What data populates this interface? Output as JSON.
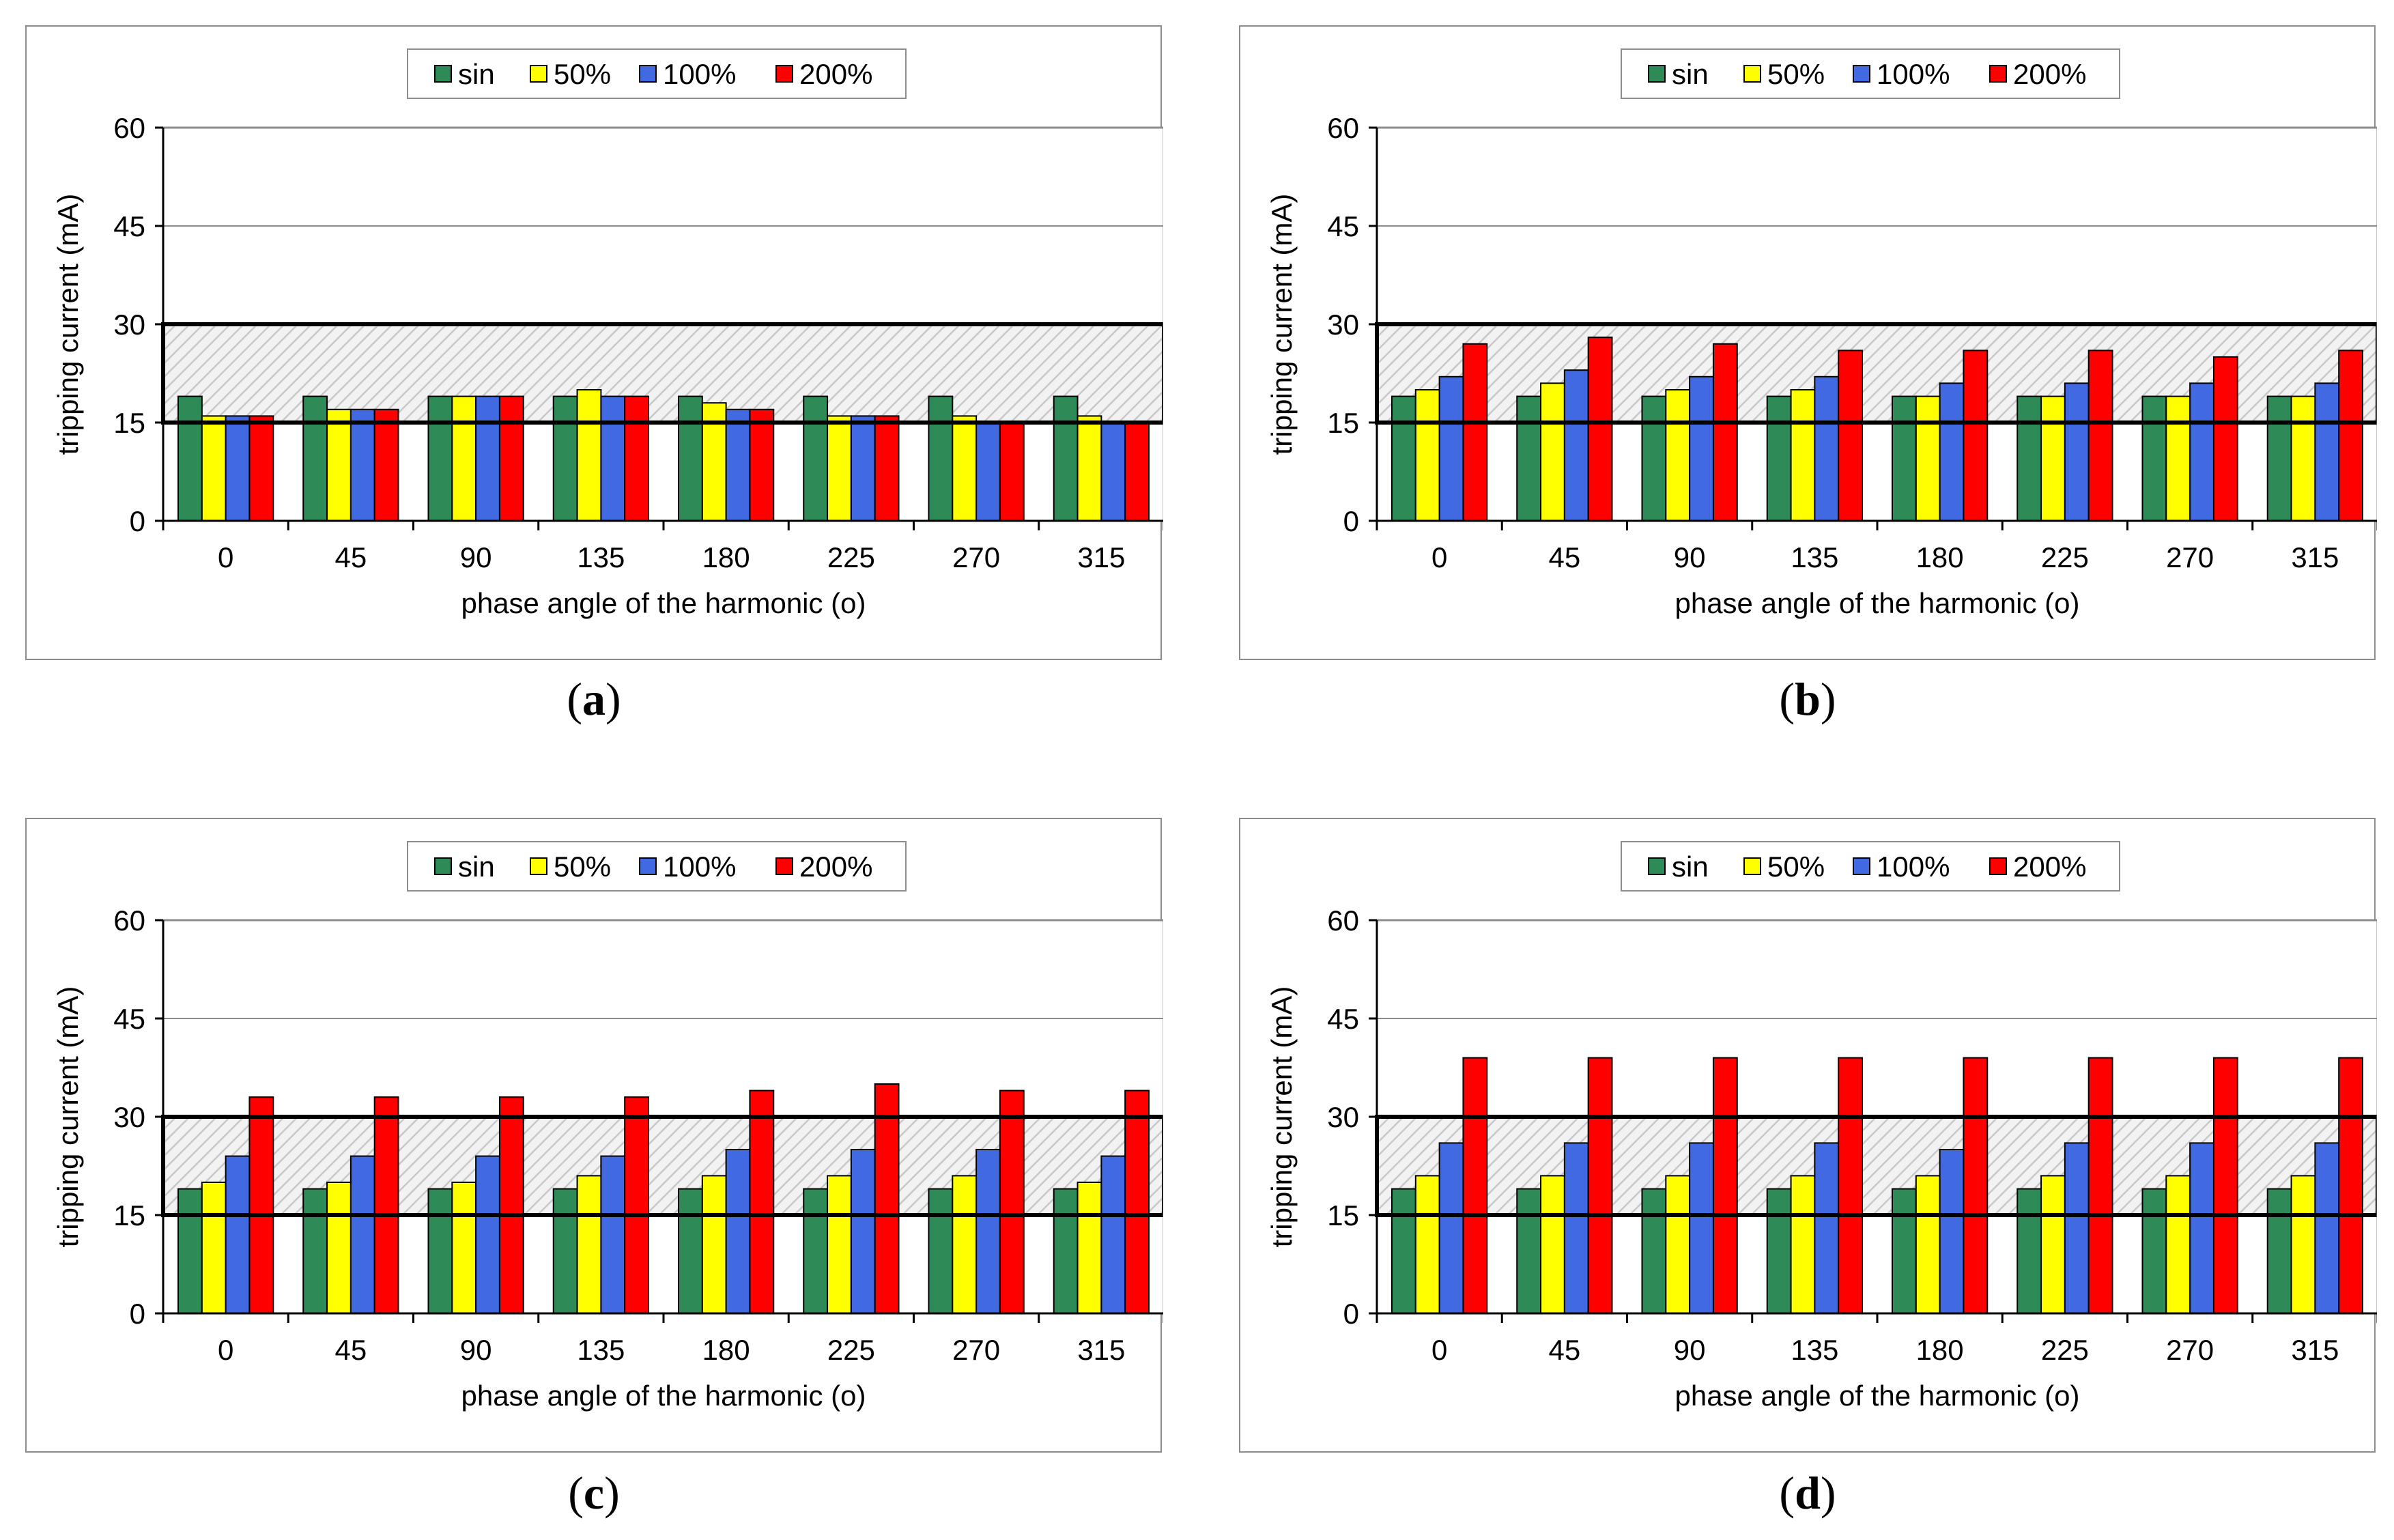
{
  "legend_colors": {
    "sin": "#2e8b57",
    "50%": "#ffff00",
    "100%": "#4169e1",
    "200%": "#ff0000"
  },
  "chart_data": [
    {
      "type": "bar",
      "caption": "a",
      "categories": [
        "0",
        "45",
        "90",
        "135",
        "180",
        "225",
        "270",
        "315"
      ],
      "xlabel": "phase angle of the harmonic (o)",
      "ylabel": "tripping current (mA)",
      "ylim": [
        0,
        60
      ],
      "yticks": [
        0,
        15,
        30,
        45,
        60
      ],
      "grid": true,
      "legend_position": "top-center",
      "highlight_band": [
        15,
        30
      ],
      "series": [
        {
          "name": "sin",
          "values": [
            19,
            19,
            19,
            19,
            19,
            19,
            19,
            19
          ]
        },
        {
          "name": "50%",
          "values": [
            16,
            17,
            19,
            20,
            18,
            16,
            16,
            16
          ]
        },
        {
          "name": "100%",
          "values": [
            16,
            17,
            19,
            19,
            17,
            16,
            15,
            15
          ]
        },
        {
          "name": "200%",
          "values": [
            16,
            17,
            19,
            19,
            17,
            16,
            15,
            15
          ]
        }
      ]
    },
    {
      "type": "bar",
      "caption": "b",
      "categories": [
        "0",
        "45",
        "90",
        "135",
        "180",
        "225",
        "270",
        "315"
      ],
      "xlabel": "phase angle of the harmonic (o)",
      "ylabel": "tripping current (mA)",
      "ylim": [
        0,
        60
      ],
      "yticks": [
        0,
        15,
        30,
        45,
        60
      ],
      "grid": true,
      "legend_position": "top-center",
      "highlight_band": [
        15,
        30
      ],
      "series": [
        {
          "name": "sin",
          "values": [
            19,
            19,
            19,
            19,
            19,
            19,
            19,
            19
          ]
        },
        {
          "name": "50%",
          "values": [
            20,
            21,
            20,
            20,
            19,
            19,
            19,
            19
          ]
        },
        {
          "name": "100%",
          "values": [
            22,
            23,
            22,
            22,
            21,
            21,
            21,
            21
          ]
        },
        {
          "name": "200%",
          "values": [
            27,
            28,
            27,
            26,
            26,
            26,
            25,
            26
          ]
        }
      ]
    },
    {
      "type": "bar",
      "caption": "c",
      "categories": [
        "0",
        "45",
        "90",
        "135",
        "180",
        "225",
        "270",
        "315"
      ],
      "xlabel": "phase angle of the harmonic (o)",
      "ylabel": "tripping current (mA)",
      "ylim": [
        0,
        60
      ],
      "yticks": [
        0,
        15,
        30,
        45,
        60
      ],
      "grid": true,
      "legend_position": "top-center",
      "highlight_band": [
        15,
        30
      ],
      "series": [
        {
          "name": "sin",
          "values": [
            19,
            19,
            19,
            19,
            19,
            19,
            19,
            19
          ]
        },
        {
          "name": "50%",
          "values": [
            20,
            20,
            20,
            21,
            21,
            21,
            21,
            20
          ]
        },
        {
          "name": "100%",
          "values": [
            24,
            24,
            24,
            24,
            25,
            25,
            25,
            24
          ]
        },
        {
          "name": "200%",
          "values": [
            33,
            33,
            33,
            33,
            34,
            35,
            34,
            34
          ]
        }
      ]
    },
    {
      "type": "bar",
      "caption": "d",
      "categories": [
        "0",
        "45",
        "90",
        "135",
        "180",
        "225",
        "270",
        "315"
      ],
      "xlabel": "phase angle of the harmonic (o)",
      "ylabel": "tripping current (mA)",
      "ylim": [
        0,
        60
      ],
      "yticks": [
        0,
        15,
        30,
        45,
        60
      ],
      "grid": true,
      "legend_position": "top-center",
      "highlight_band": [
        15,
        30
      ],
      "series": [
        {
          "name": "sin",
          "values": [
            19,
            19,
            19,
            19,
            19,
            19,
            19,
            19
          ]
        },
        {
          "name": "50%",
          "values": [
            21,
            21,
            21,
            21,
            21,
            21,
            21,
            21
          ]
        },
        {
          "name": "100%",
          "values": [
            26,
            26,
            26,
            26,
            25,
            26,
            26,
            26
          ]
        },
        {
          "name": "200%",
          "values": [
            39,
            39,
            39,
            39,
            39,
            39,
            39,
            39
          ]
        }
      ]
    }
  ]
}
